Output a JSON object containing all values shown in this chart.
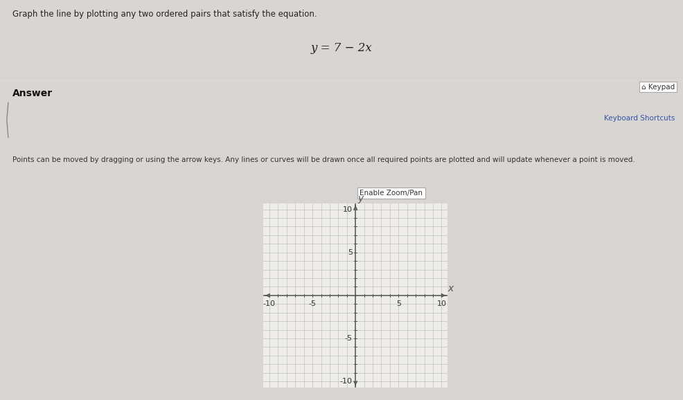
{
  "title_text": "Graph the line by plotting any two ordered pairs that satisfy the equation.",
  "equation": "y = 7 − 2x",
  "answer_label": "Answer",
  "keypad_label": "⌂ Keypad",
  "keyboard_shortcuts_label": "Keyboard Shortcuts",
  "instructions": "Points can be moved by dragging or using the arrow keys. Any lines or curves will be drawn once all required points are plotted and will update whenever a point is moved.",
  "enable_zoom_label": "Enable Zoom/Pan",
  "bg_color_top": "#e8e6e4",
  "bg_color_bottom": "#d8d5d2",
  "grid_color": "#bbbbbb",
  "axis_color": "#555555",
  "grid_bg": "#eeede9",
  "white_panel": "#f7f6f4",
  "xmin": -10,
  "xmax": 10,
  "ymin": -10,
  "ymax": 10,
  "xlabel": "x",
  "ylabel": "y",
  "axis_label_fontsize": 10,
  "tick_fontsize": 8,
  "title_fontsize": 8.5,
  "eq_fontsize": 12,
  "answer_fontsize": 9,
  "instruction_fontsize": 7.5
}
